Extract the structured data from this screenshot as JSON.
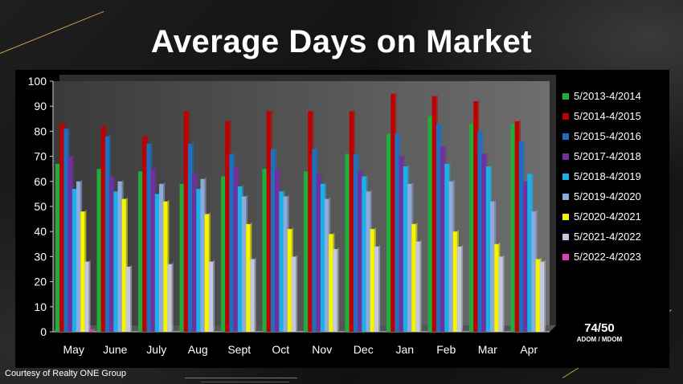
{
  "title": "Average Days on Market",
  "chart_data": {
    "type": "bar",
    "title": "Average Days on Market",
    "categories": [
      "May",
      "June",
      "July",
      "Aug",
      "Sept",
      "Oct",
      "Nov",
      "Dec",
      "Jan",
      "Feb",
      "Mar",
      "Apr"
    ],
    "ylim": [
      0,
      100
    ],
    "yticks": [
      0,
      10,
      20,
      30,
      40,
      50,
      60,
      70,
      80,
      90,
      100
    ],
    "grid": false,
    "legend_position": "right",
    "series": [
      {
        "name": "5/2013-4/2014",
        "color": "#1fae3c",
        "values": [
          67,
          65,
          64,
          59,
          62,
          65,
          64,
          71,
          79,
          86,
          83,
          83
        ]
      },
      {
        "name": "5/2014-4/2015",
        "color": "#c00000",
        "values": [
          83,
          82,
          78,
          88,
          84,
          88,
          88,
          88,
          95,
          94,
          92,
          84
        ]
      },
      {
        "name": "5/2015-4/2016",
        "color": "#1f6fbf",
        "values": [
          81,
          78,
          75,
          75,
          71,
          73,
          73,
          71,
          79,
          83,
          80,
          76
        ]
      },
      {
        "name": "5/2017-4/2018",
        "color": "#7030a0",
        "values": [
          70,
          62,
          65,
          63,
          66,
          65,
          63,
          64,
          70,
          74,
          71,
          60
        ]
      },
      {
        "name": "5/2018-4/2019",
        "color": "#1ab0e8",
        "values": [
          57,
          56,
          55,
          57,
          58,
          56,
          59,
          62,
          66,
          67,
          66,
          63
        ]
      },
      {
        "name": "5/2019-4/2020",
        "color": "#8ea9db",
        "values": [
          60,
          60,
          59,
          61,
          54,
          54,
          53,
          56,
          59,
          60,
          52,
          48
        ]
      },
      {
        "name": "5/2020-4/2021",
        "color": "#f5f500",
        "values": [
          48,
          53,
          52,
          47,
          43,
          41,
          39,
          41,
          43,
          40,
          35,
          29
        ]
      },
      {
        "name": "5/2021-4/2022",
        "color": "#c3c8de",
        "values": [
          28,
          26,
          27,
          28,
          29,
          30,
          33,
          34,
          36,
          34,
          30,
          28
        ]
      },
      {
        "name": "5/2022-4/2023",
        "color": "#e040b0",
        "values": [
          1,
          0,
          0,
          0,
          0,
          0,
          0,
          0,
          0,
          0,
          0,
          0
        ]
      }
    ]
  },
  "adom": {
    "value": "74/50",
    "label": "ADOM / MDOM"
  },
  "credit": "Courtesy of Realty ONE Group"
}
